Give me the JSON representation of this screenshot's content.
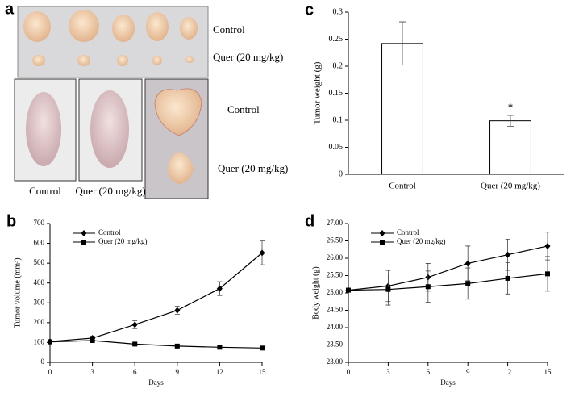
{
  "panel_a": {
    "letter": "a",
    "labels": [
      "Control",
      "Quer (20 mg/kg)",
      "Control",
      "Quer (20 mg/kg)",
      "Control",
      "Quer (20 mg/kg)"
    ]
  },
  "chart_data": [
    {
      "type": "bar",
      "panel_label": "c",
      "ylabel": "Tumor weight (g)",
      "categories": [
        "Control",
        "Quer (20 mg/kg)"
      ],
      "values": [
        0.242,
        0.099
      ],
      "errors": [
        0.04,
        0.01
      ],
      "annotation": "*",
      "color": "#ffffff",
      "ylim": [
        0,
        0.3
      ],
      "yticks": [
        0,
        0.05,
        0.1,
        0.15,
        0.2,
        0.25,
        0.3
      ]
    },
    {
      "type": "line",
      "panel_label": "b",
      "xlabel": "Days",
      "ylabel": "Tumor volume (mm³)",
      "x": [
        0,
        3,
        6,
        9,
        12,
        15
      ],
      "series": [
        {
          "name": "Control",
          "color": "#000000",
          "marker": "diamond",
          "values": [
            105,
            122,
            190,
            262,
            372,
            552
          ],
          "errors": [
            10,
            10,
            20,
            20,
            35,
            60
          ]
        },
        {
          "name": "Quer (20 mg/kg)",
          "color": "#000000",
          "marker": "square",
          "values": [
            103,
            110,
            92,
            82,
            76,
            72
          ],
          "errors": [
            8,
            8,
            8,
            8,
            8,
            8
          ]
        }
      ],
      "xlim": [
        0,
        15
      ],
      "xticks": [
        0,
        3,
        6,
        9,
        12,
        15
      ],
      "ylim": [
        0,
        700
      ],
      "yticks": [
        0,
        100,
        200,
        300,
        400,
        500,
        600,
        700
      ],
      "legend": "top-left"
    },
    {
      "type": "line",
      "panel_label": "d",
      "xlabel": "Days",
      "ylabel": "Body weight (g)",
      "x": [
        0,
        3,
        6,
        9,
        12,
        15
      ],
      "series": [
        {
          "name": "Control",
          "color": "#000000",
          "marker": "diamond",
          "values": [
            25.08,
            25.2,
            25.45,
            25.85,
            26.1,
            26.35
          ],
          "errors": [
            0.05,
            0.45,
            0.4,
            0.5,
            0.45,
            0.4
          ]
        },
        {
          "name": "Quer (20 mg/kg)",
          "color": "#000000",
          "marker": "square",
          "values": [
            25.08,
            25.1,
            25.18,
            25.27,
            25.42,
            25.55
          ],
          "errors": [
            0.05,
            0.45,
            0.45,
            0.45,
            0.45,
            0.5
          ]
        }
      ],
      "xlim": [
        0,
        15
      ],
      "xticks": [
        0,
        3,
        6,
        9,
        12,
        15
      ],
      "ylim": [
        23,
        27
      ],
      "yticks": [
        {
          "value": 23,
          "label": "23.00"
        },
        {
          "value": 23.5,
          "label": "23.50"
        },
        {
          "value": 24,
          "label": "24.00"
        },
        {
          "value": 24.5,
          "label": "24.50"
        },
        {
          "value": 25,
          "label": "25.00"
        },
        {
          "value": 25.5,
          "label": "25.50"
        },
        {
          "value": 26,
          "label": "26.00"
        },
        {
          "value": 26.5,
          "label": "26.50"
        },
        {
          "value": 27,
          "label": "27.00"
        }
      ],
      "legend": "top-left"
    }
  ]
}
